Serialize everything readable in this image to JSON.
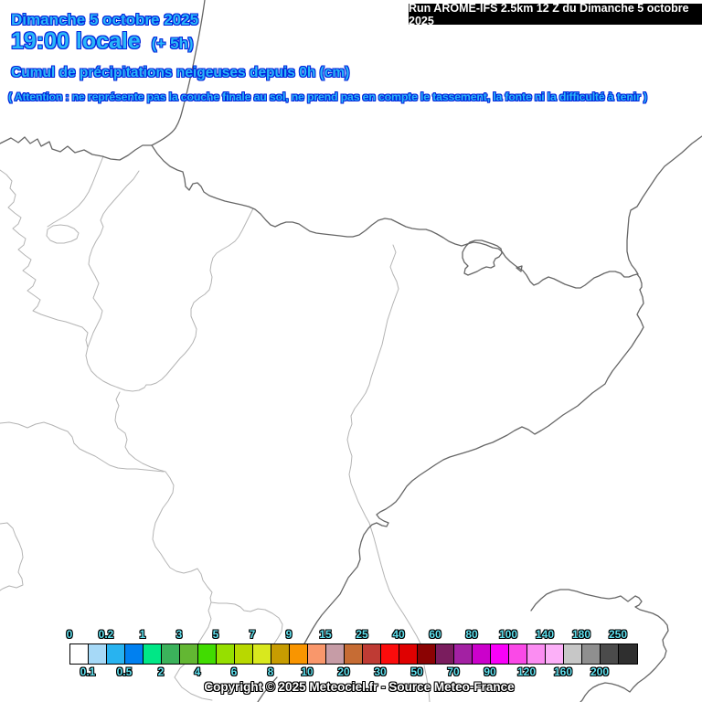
{
  "header": {
    "date_line": "Dimanche 5 octobre 2025",
    "time_line": "19:00 locale",
    "time_offset": "(+ 5h)",
    "run_info": "Run AROME-IFS 2.5km 12 Z du Dimanche 5 octobre 2025",
    "subtitle": "Cumul de précipitations neigeuses depuis 0h (cm)",
    "warning": "( Attention : ne représente pas la couche finale au sol, ne prend pas en compte le tassement, la fonte ni la difficulté à tenir )",
    "text_color": "#29B7F7",
    "outline_color": "#0424DC"
  },
  "map": {
    "background": "#FFFFFF",
    "coastline_color": "#666666",
    "boundary_color": "#B4B4B4"
  },
  "legend": {
    "unit": "cm",
    "label_color": "#5FE0EE",
    "top_labels": [
      "0",
      "0.2",
      "1",
      "3",
      "5",
      "7",
      "9",
      "15",
      "25",
      "40",
      "60",
      "80",
      "100",
      "140",
      "180",
      "250"
    ],
    "bottom_labels": [
      "0.1",
      "0.5",
      "2",
      "4",
      "6",
      "8",
      "10",
      "20",
      "30",
      "50",
      "70",
      "90",
      "120",
      "160",
      "200"
    ],
    "cells": [
      {
        "from": "0",
        "to": "0.1",
        "color": "#FFFFFF"
      },
      {
        "from": "0.1",
        "to": "0.2",
        "color": "#A6D9F7"
      },
      {
        "from": "0.2",
        "to": "0.5",
        "color": "#28B3F0"
      },
      {
        "from": "0.5",
        "to": "1",
        "color": "#0080F0"
      },
      {
        "from": "1",
        "to": "2",
        "color": "#00E786"
      },
      {
        "from": "2",
        "to": "3",
        "color": "#3BB25B"
      },
      {
        "from": "3",
        "to": "4",
        "color": "#63B733"
      },
      {
        "from": "4",
        "to": "5",
        "color": "#41DC01"
      },
      {
        "from": "5",
        "to": "6",
        "color": "#96DF00"
      },
      {
        "from": "6",
        "to": "7",
        "color": "#B8D800"
      },
      {
        "from": "7",
        "to": "8",
        "color": "#D9E81E"
      },
      {
        "from": "8",
        "to": "9",
        "color": "#C79C01"
      },
      {
        "from": "9",
        "to": "10",
        "color": "#F99500"
      },
      {
        "from": "10",
        "to": "15",
        "color": "#F9976B"
      },
      {
        "from": "15",
        "to": "20",
        "color": "#C69CA6"
      },
      {
        "from": "20",
        "to": "25",
        "color": "#C66C34"
      },
      {
        "from": "25",
        "to": "30",
        "color": "#BF3B34"
      },
      {
        "from": "30",
        "to": "40",
        "color": "#FB0C0C"
      },
      {
        "from": "40",
        "to": "50",
        "color": "#DF0101"
      },
      {
        "from": "50",
        "to": "60",
        "color": "#8B0303"
      },
      {
        "from": "60",
        "to": "70",
        "color": "#7A1D5E"
      },
      {
        "from": "70",
        "to": "80",
        "color": "#A321A3"
      },
      {
        "from": "80",
        "to": "90",
        "color": "#CB01CB"
      },
      {
        "from": "90",
        "to": "100",
        "color": "#F901F9"
      },
      {
        "from": "100",
        "to": "120",
        "color": "#FA49E7"
      },
      {
        "from": "120",
        "to": "140",
        "color": "#FB8DF2"
      },
      {
        "from": "140",
        "to": "160",
        "color": "#FCB0F8"
      },
      {
        "from": "160",
        "to": "180",
        "color": "#C7C7C7"
      },
      {
        "from": "180",
        "to": "200",
        "color": "#8F8F8F"
      },
      {
        "from": "200",
        "to": "250",
        "color": "#4B4B4B"
      },
      {
        "from": "250",
        "to": "",
        "color": "#2F2F2F"
      }
    ]
  },
  "footer": {
    "copyright": "Copyright © 2025 Meteociel.fr - Source Meteo-France"
  }
}
